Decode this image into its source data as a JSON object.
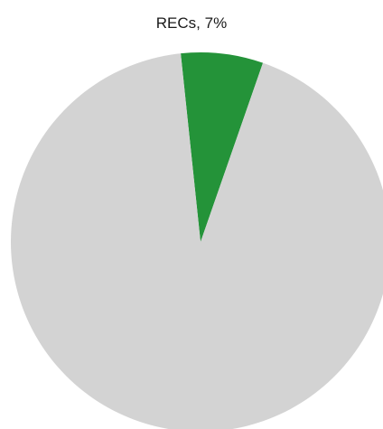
{
  "chart_data": {
    "type": "pie",
    "slices": [
      {
        "label": "RECs",
        "value": 7,
        "color": "#249339",
        "data_label": "RECs, 7%"
      },
      {
        "label": "",
        "value": 93,
        "color": "#d3d3d3",
        "data_label": ""
      }
    ],
    "start_angle_deg": -6
  }
}
